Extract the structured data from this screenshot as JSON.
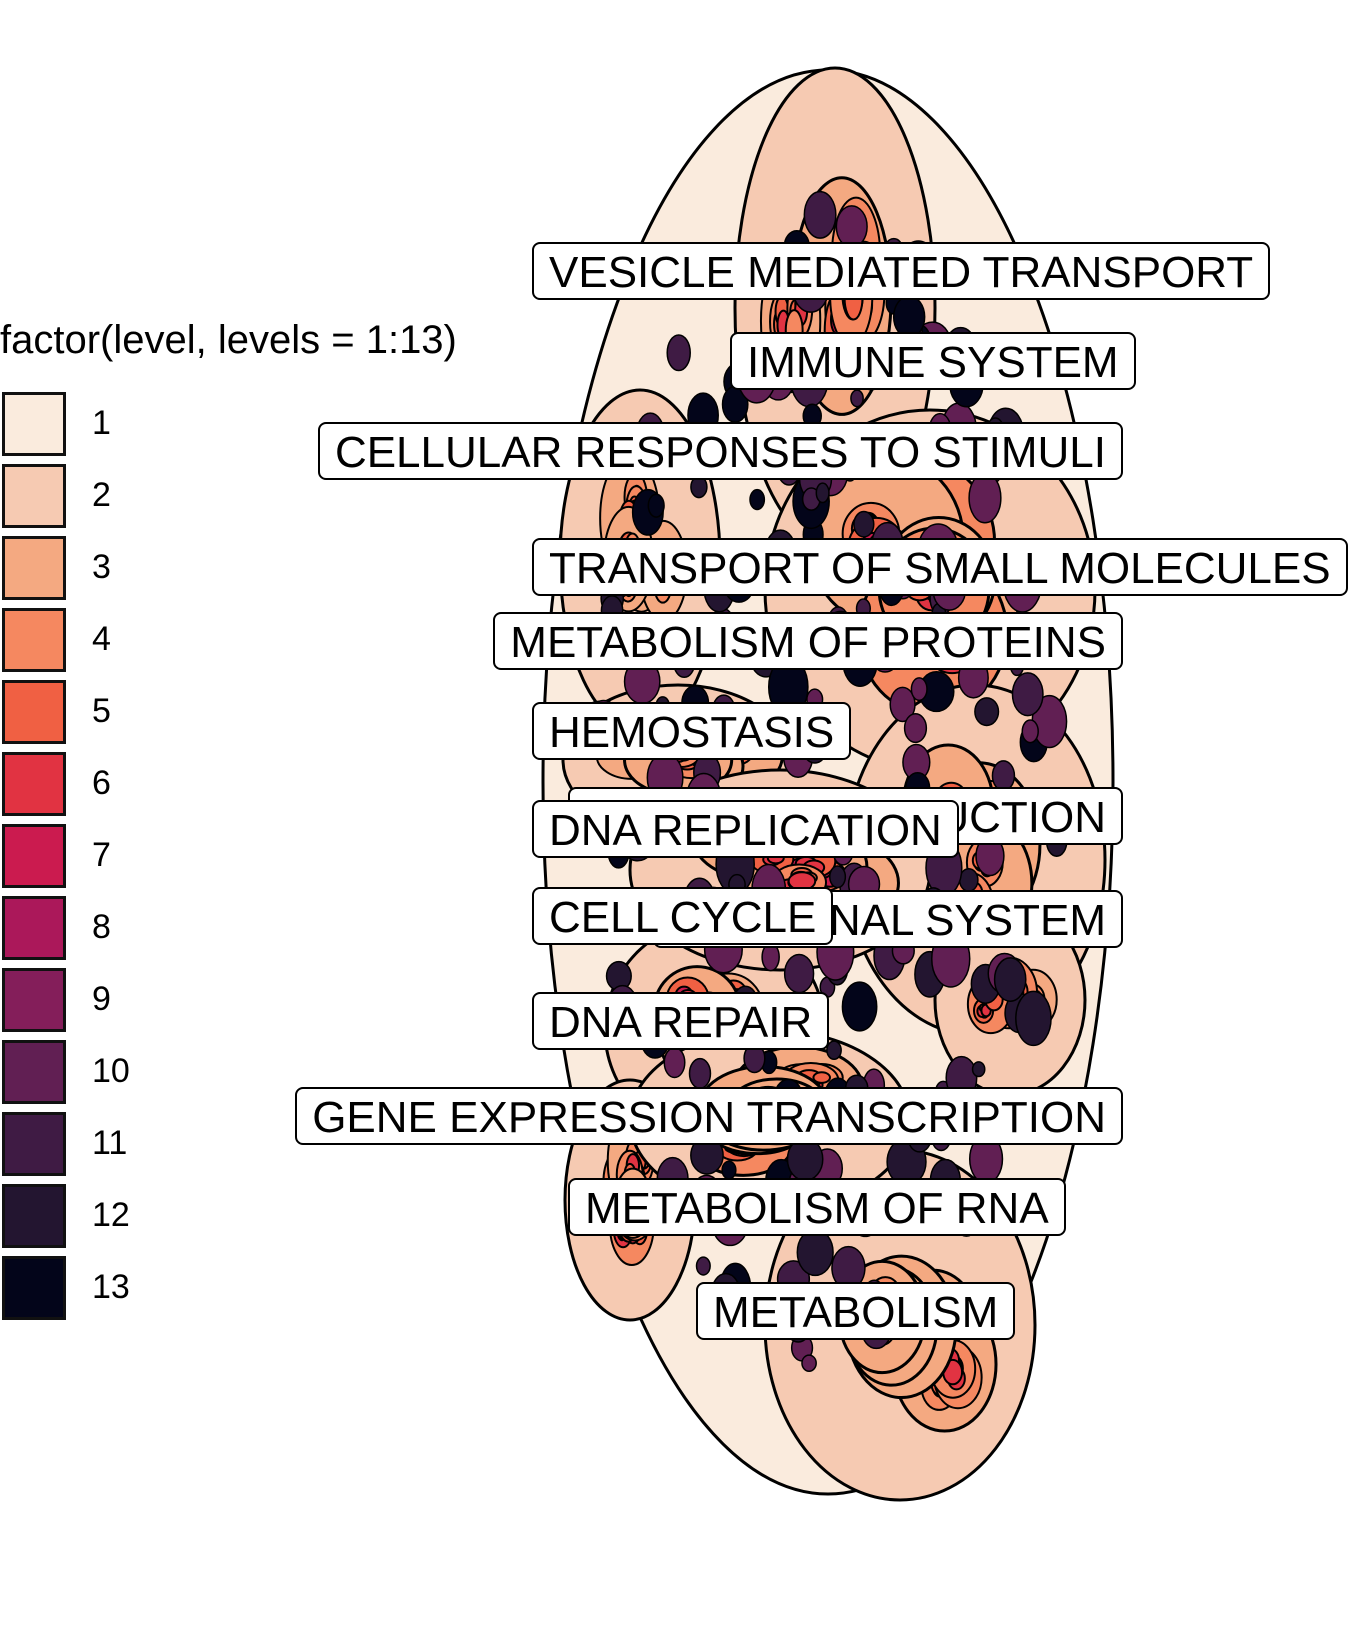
{
  "legend": {
    "title": "factor(level, levels = 1:13)",
    "entries": [
      {
        "label": "1",
        "color": "#FAEBDD"
      },
      {
        "label": "2",
        "color": "#F6CAB2"
      },
      {
        "label": "3",
        "color": "#F4A981"
      },
      {
        "label": "4",
        "color": "#F58860"
      },
      {
        "label": "5",
        "color": "#F06043"
      },
      {
        "label": "6",
        "color": "#E13342"
      },
      {
        "label": "7",
        "color": "#CB1B4F"
      },
      {
        "label": "8",
        "color": "#AB185A"
      },
      {
        "label": "9",
        "color": "#841E5A"
      },
      {
        "label": "10",
        "color": "#611F53"
      },
      {
        "label": "11",
        "color": "#3F1B44"
      },
      {
        "label": "12",
        "color": "#231530"
      },
      {
        "label": "13",
        "color": "#03051A"
      }
    ]
  },
  "labels": [
    {
      "text": "VESICLE MEDIATED TRANSPORT"
    },
    {
      "text": "IMMUNE SYSTEM"
    },
    {
      "text": "CELLULAR RESPONSES TO STIMULI"
    },
    {
      "text": "TRANSPORT OF SMALL MOLECULES"
    },
    {
      "text": "METABOLISM OF PROTEINS"
    },
    {
      "text": "HEMOSTASIS"
    },
    {
      "text": "SIGNAL TRANSDUCTION"
    },
    {
      "text": "DNA REPLICATION"
    },
    {
      "text": "NEURONAL SYSTEM"
    },
    {
      "text": "CELL CYCLE"
    },
    {
      "text": "DNA REPAIR"
    },
    {
      "text": "GENE EXPRESSION TRANSCRIPTION"
    },
    {
      "text": "METABOLISM OF RNA"
    },
    {
      "text": "METABOLISM"
    }
  ]
}
